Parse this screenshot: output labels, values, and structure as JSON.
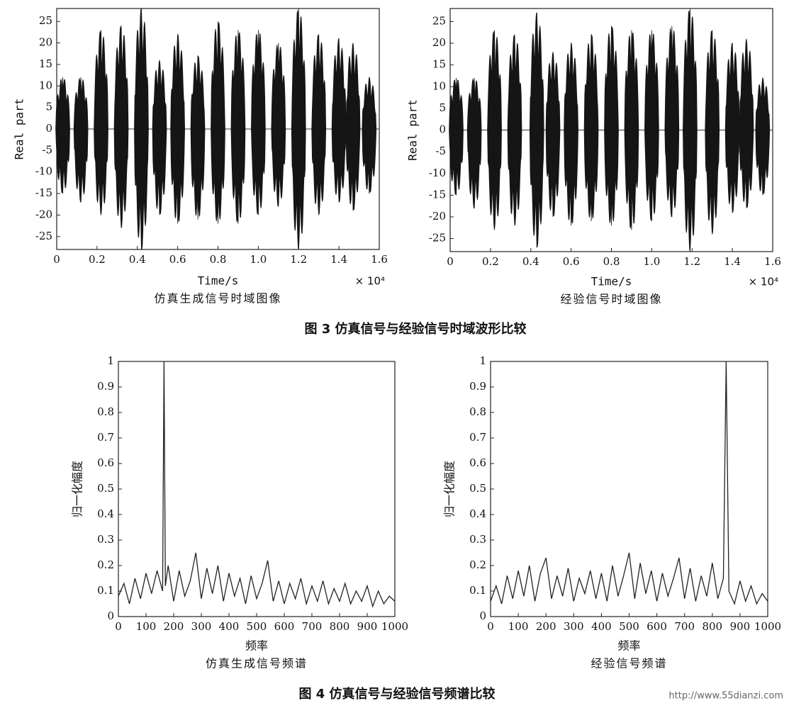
{
  "chart_data": [
    {
      "type": "envelope",
      "xlabel": "Time/s",
      "ylabel": "Real part",
      "subtitle": "仿真生成信号时域图像",
      "x_multiplier": "× 10⁴",
      "xlim": [
        0,
        1.6
      ],
      "ylim": [
        -28,
        28
      ],
      "xticks": [
        0,
        0.2,
        0.4,
        0.6,
        0.8,
        {
          "value": 1,
          "label": "1.0"
        },
        1.2,
        1.4,
        1.6
      ],
      "yticks": [
        -25,
        -20,
        -15,
        -10,
        -5,
        0,
        5,
        10,
        15,
        20,
        25
      ],
      "color": "#151515",
      "x": [
        0.03,
        0.12,
        0.22,
        0.32,
        0.42,
        0.51,
        0.6,
        0.7,
        0.8,
        0.9,
        1.0,
        1.1,
        1.2,
        1.3,
        1.4,
        1.47,
        1.55
      ],
      "high": [
        12,
        12,
        23,
        24,
        28,
        16,
        22,
        17,
        25,
        23,
        23,
        20,
        28,
        22,
        21,
        20,
        12
      ],
      "low": [
        -15,
        -17,
        -20,
        -23,
        -28,
        -20,
        -22,
        -21,
        -22,
        -22,
        -20,
        -18,
        -28,
        -20,
        -17,
        -19,
        -15
      ]
    },
    {
      "type": "envelope",
      "xlabel": "Time/s",
      "ylabel": "Real part",
      "subtitle": "经验信号时域图像",
      "x_multiplier": "× 10⁴",
      "xlim": [
        0,
        1.6
      ],
      "ylim": [
        -28,
        28
      ],
      "xticks": [
        0,
        0.2,
        0.4,
        0.6,
        0.8,
        {
          "value": 1,
          "label": "1.0"
        },
        1.2,
        1.4,
        1.6
      ],
      "yticks": [
        -25,
        -20,
        -15,
        -10,
        -5,
        0,
        5,
        10,
        15,
        20,
        25
      ],
      "color": "#151515",
      "x": [
        0.03,
        0.12,
        0.22,
        0.32,
        0.43,
        0.51,
        0.6,
        0.7,
        0.8,
        0.9,
        1.0,
        1.1,
        1.19,
        1.3,
        1.4,
        1.47,
        1.55
      ],
      "high": [
        12,
        12,
        23,
        22,
        27,
        18,
        20,
        22,
        24,
        23,
        23,
        24,
        28,
        23,
        20,
        21,
        12
      ],
      "low": [
        -15,
        -18,
        -23,
        -22,
        -27,
        -20,
        -22,
        -21,
        -22,
        -23,
        -21,
        -20,
        -28,
        -24,
        -19,
        -18,
        -15
      ]
    },
    {
      "type": "line",
      "xlabel": "频率",
      "ylabel": "归一化幅度",
      "subtitle": "仿真生成信号频谱",
      "xlim": [
        0,
        1000
      ],
      "ylim": [
        0,
        1
      ],
      "xticks": [
        0,
        100,
        200,
        300,
        400,
        500,
        600,
        700,
        800,
        900,
        1000
      ],
      "yticks": [
        0,
        0.1,
        0.2,
        0.3,
        0.4,
        0.5,
        0.6,
        0.7,
        0.8,
        0.9,
        1
      ],
      "color": "#222",
      "x": [
        0,
        20,
        40,
        60,
        80,
        100,
        120,
        140,
        160,
        165,
        170,
        180,
        200,
        220,
        240,
        260,
        280,
        300,
        320,
        340,
        360,
        380,
        400,
        420,
        440,
        460,
        480,
        500,
        520,
        540,
        560,
        580,
        600,
        620,
        640,
        660,
        680,
        700,
        720,
        740,
        760,
        780,
        800,
        820,
        840,
        860,
        880,
        900,
        920,
        940,
        960,
        980,
        1000
      ],
      "values": [
        0.08,
        0.13,
        0.05,
        0.15,
        0.07,
        0.17,
        0.09,
        0.18,
        0.1,
        1.0,
        0.12,
        0.2,
        0.06,
        0.18,
        0.08,
        0.14,
        0.25,
        0.07,
        0.19,
        0.09,
        0.2,
        0.06,
        0.17,
        0.08,
        0.15,
        0.05,
        0.16,
        0.07,
        0.13,
        0.22,
        0.06,
        0.14,
        0.05,
        0.13,
        0.07,
        0.15,
        0.05,
        0.12,
        0.06,
        0.14,
        0.05,
        0.11,
        0.06,
        0.13,
        0.05,
        0.1,
        0.06,
        0.12,
        0.04,
        0.1,
        0.05,
        0.08,
        0.06
      ]
    },
    {
      "type": "line",
      "xlabel": "频率",
      "ylabel": "归一化幅度",
      "subtitle": "经验信号频谱",
      "xlim": [
        0,
        1000
      ],
      "ylim": [
        0,
        1
      ],
      "xticks": [
        0,
        100,
        200,
        300,
        400,
        500,
        600,
        700,
        800,
        900,
        1000
      ],
      "yticks": [
        0,
        0.1,
        0.2,
        0.3,
        0.4,
        0.5,
        0.6,
        0.7,
        0.8,
        0.9,
        1
      ],
      "color": "#222",
      "x": [
        0,
        20,
        40,
        60,
        80,
        100,
        120,
        140,
        160,
        180,
        200,
        220,
        240,
        260,
        280,
        300,
        320,
        340,
        360,
        380,
        400,
        420,
        440,
        460,
        480,
        500,
        520,
        540,
        560,
        580,
        600,
        620,
        640,
        660,
        680,
        700,
        720,
        740,
        760,
        780,
        800,
        820,
        840,
        850,
        860,
        880,
        900,
        920,
        940,
        960,
        980,
        1000
      ],
      "values": [
        0.06,
        0.12,
        0.05,
        0.16,
        0.07,
        0.18,
        0.08,
        0.2,
        0.06,
        0.17,
        0.23,
        0.07,
        0.16,
        0.08,
        0.19,
        0.06,
        0.15,
        0.09,
        0.18,
        0.07,
        0.17,
        0.06,
        0.2,
        0.08,
        0.16,
        0.25,
        0.07,
        0.21,
        0.09,
        0.18,
        0.06,
        0.17,
        0.08,
        0.15,
        0.23,
        0.07,
        0.19,
        0.06,
        0.16,
        0.08,
        0.21,
        0.07,
        0.15,
        1.0,
        0.1,
        0.05,
        0.14,
        0.06,
        0.12,
        0.05,
        0.09,
        0.06
      ]
    }
  ],
  "figure_captions": [
    "图 3  仿真信号与经验信号时域波形比较",
    "图 4  仿真信号与经验信号频谱比较"
  ],
  "watermark": "http://www.55dianzi.com"
}
